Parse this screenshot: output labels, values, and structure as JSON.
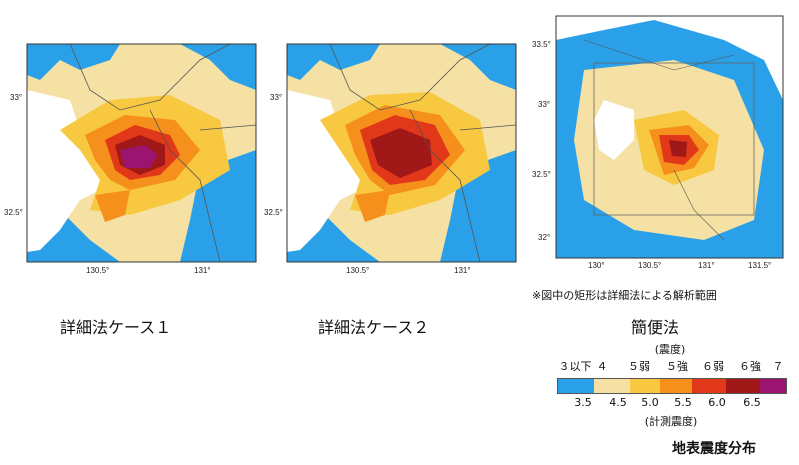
{
  "maps": [
    {
      "caption": "詳細法ケース１",
      "lon_ticks": [
        "130.5°",
        "131°"
      ],
      "lat_ticks": [
        "33°",
        "32.5°"
      ]
    },
    {
      "caption": "詳細法ケース２",
      "lon_ticks": [
        "130.5°",
        "131°"
      ],
      "lat_ticks": [
        "33°",
        "32.5°"
      ]
    },
    {
      "caption": "簡便法",
      "lon_ticks": [
        "130°",
        "130.5°",
        "131°",
        "131.5°"
      ],
      "lat_ticks": [
        "33.5°",
        "33°",
        "32.5°",
        "32°"
      ]
    }
  ],
  "note": "※図中の矩形は詳細法による解析範囲",
  "legend": {
    "title": "(震度)",
    "class_labels": [
      "３以下",
      "４",
      "５弱",
      "５強",
      "６弱",
      "６強",
      "７"
    ],
    "scale_values": [
      "3.5",
      "4.5",
      "5.0",
      "5.5",
      "6.0",
      "6.5"
    ],
    "scale_title": "(計測震度)",
    "colors": [
      "#2aa0e8",
      "#f5e1a4",
      "#f8c840",
      "#f5901c",
      "#e03818",
      "#a01818",
      "#9a1470"
    ]
  },
  "footer": "地表震度分布"
}
